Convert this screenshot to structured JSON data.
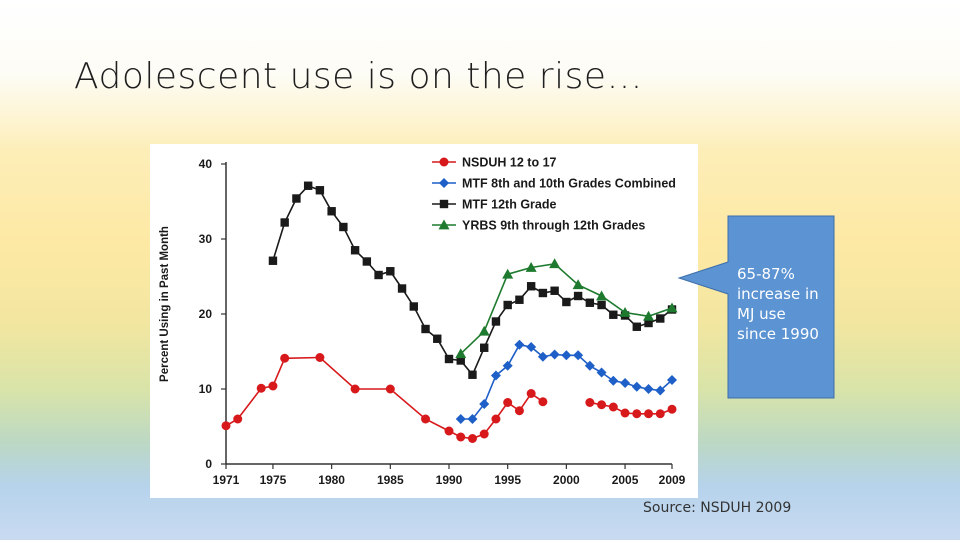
{
  "slide": {
    "title": "Adolescent use is on the rise…",
    "callout": "65-87% increase in MJ use since 1990",
    "source": "Source: NSDUH 2009"
  },
  "chart_data": {
    "type": "line",
    "title": "",
    "xlabel": "",
    "ylabel": "Percent Using in Past Month",
    "xlim": [
      1971,
      2009
    ],
    "ylim": [
      0,
      40
    ],
    "x_ticks": [
      1971,
      1975,
      1980,
      1985,
      1990,
      1995,
      2000,
      2005,
      2009
    ],
    "y_ticks": [
      0,
      10,
      20,
      30,
      40
    ],
    "grid": false,
    "legend_position": "top-center",
    "series": [
      {
        "name": "NSDUH 12 to 17",
        "color": "#d7191c",
        "marker": "circle",
        "segments": [
          [
            [
              1971,
              5.1
            ],
            [
              1972,
              6.0
            ],
            [
              1974,
              10.1
            ],
            [
              1975,
              10.4
            ],
            [
              1976,
              14.1
            ],
            [
              1979,
              14.2
            ],
            [
              1982,
              10.0
            ],
            [
              1985,
              10.0
            ],
            [
              1988,
              6.0
            ],
            [
              1990,
              4.4
            ],
            [
              1991,
              3.6
            ],
            [
              1992,
              3.4
            ],
            [
              1993,
              4.0
            ],
            [
              1994,
              6.0
            ],
            [
              1995,
              8.2
            ],
            [
              1996,
              7.1
            ],
            [
              1997,
              9.4
            ],
            [
              1998,
              8.3
            ]
          ],
          [
            [
              2002,
              8.2
            ],
            [
              2003,
              7.9
            ],
            [
              2004,
              7.6
            ],
            [
              2005,
              6.8
            ],
            [
              2006,
              6.7
            ],
            [
              2007,
              6.7
            ],
            [
              2008,
              6.7
            ],
            [
              2009,
              7.3
            ]
          ]
        ]
      },
      {
        "name": "MTF 8th and 10th Grades Combined",
        "color": "#1f5fc8",
        "marker": "diamond",
        "segments": [
          [
            [
              1991,
              6.0
            ],
            [
              1992,
              6.0
            ],
            [
              1993,
              8.0
            ],
            [
              1994,
              11.8
            ],
            [
              1995,
              13.1
            ],
            [
              1996,
              15.9
            ],
            [
              1997,
              15.6
            ],
            [
              1998,
              14.3
            ],
            [
              1999,
              14.6
            ],
            [
              2000,
              14.5
            ],
            [
              2001,
              14.5
            ],
            [
              2002,
              13.1
            ],
            [
              2003,
              12.2
            ],
            [
              2004,
              11.1
            ],
            [
              2005,
              10.8
            ],
            [
              2006,
              10.3
            ],
            [
              2007,
              10.0
            ],
            [
              2008,
              9.8
            ],
            [
              2009,
              11.2
            ]
          ]
        ]
      },
      {
        "name": "MTF 12th Grade",
        "color": "#1a1a1a",
        "marker": "square",
        "segments": [
          [
            [
              1975,
              27.1
            ],
            [
              1976,
              32.2
            ],
            [
              1977,
              35.4
            ],
            [
              1978,
              37.1
            ],
            [
              1979,
              36.5
            ],
            [
              1980,
              33.7
            ],
            [
              1981,
              31.6
            ],
            [
              1982,
              28.5
            ],
            [
              1983,
              27.0
            ],
            [
              1984,
              25.2
            ],
            [
              1985,
              25.7
            ],
            [
              1986,
              23.4
            ],
            [
              1987,
              21.0
            ],
            [
              1988,
              18.0
            ],
            [
              1989,
              16.7
            ],
            [
              1990,
              14.0
            ],
            [
              1991,
              13.8
            ],
            [
              1992,
              11.9
            ],
            [
              1993,
              15.5
            ],
            [
              1994,
              19.0
            ],
            [
              1995,
              21.2
            ],
            [
              1996,
              21.9
            ],
            [
              1997,
              23.7
            ],
            [
              1998,
              22.8
            ],
            [
              1999,
              23.1
            ],
            [
              2000,
              21.6
            ],
            [
              2001,
              22.4
            ],
            [
              2002,
              21.5
            ],
            [
              2003,
              21.2
            ],
            [
              2004,
              19.9
            ],
            [
              2005,
              19.8
            ],
            [
              2006,
              18.3
            ],
            [
              2007,
              18.8
            ],
            [
              2008,
              19.4
            ],
            [
              2009,
              20.6
            ]
          ]
        ]
      },
      {
        "name": "YRBS 9th through 12th Grades",
        "color": "#1e7a2e",
        "marker": "triangle",
        "segments": [
          [
            [
              1991,
              14.7
            ],
            [
              1993,
              17.7
            ],
            [
              1995,
              25.3
            ],
            [
              1997,
              26.2
            ],
            [
              1999,
              26.7
            ],
            [
              2001,
              23.9
            ],
            [
              2003,
              22.4
            ],
            [
              2005,
              20.2
            ],
            [
              2007,
              19.7
            ],
            [
              2009,
              20.8
            ]
          ]
        ]
      }
    ]
  }
}
